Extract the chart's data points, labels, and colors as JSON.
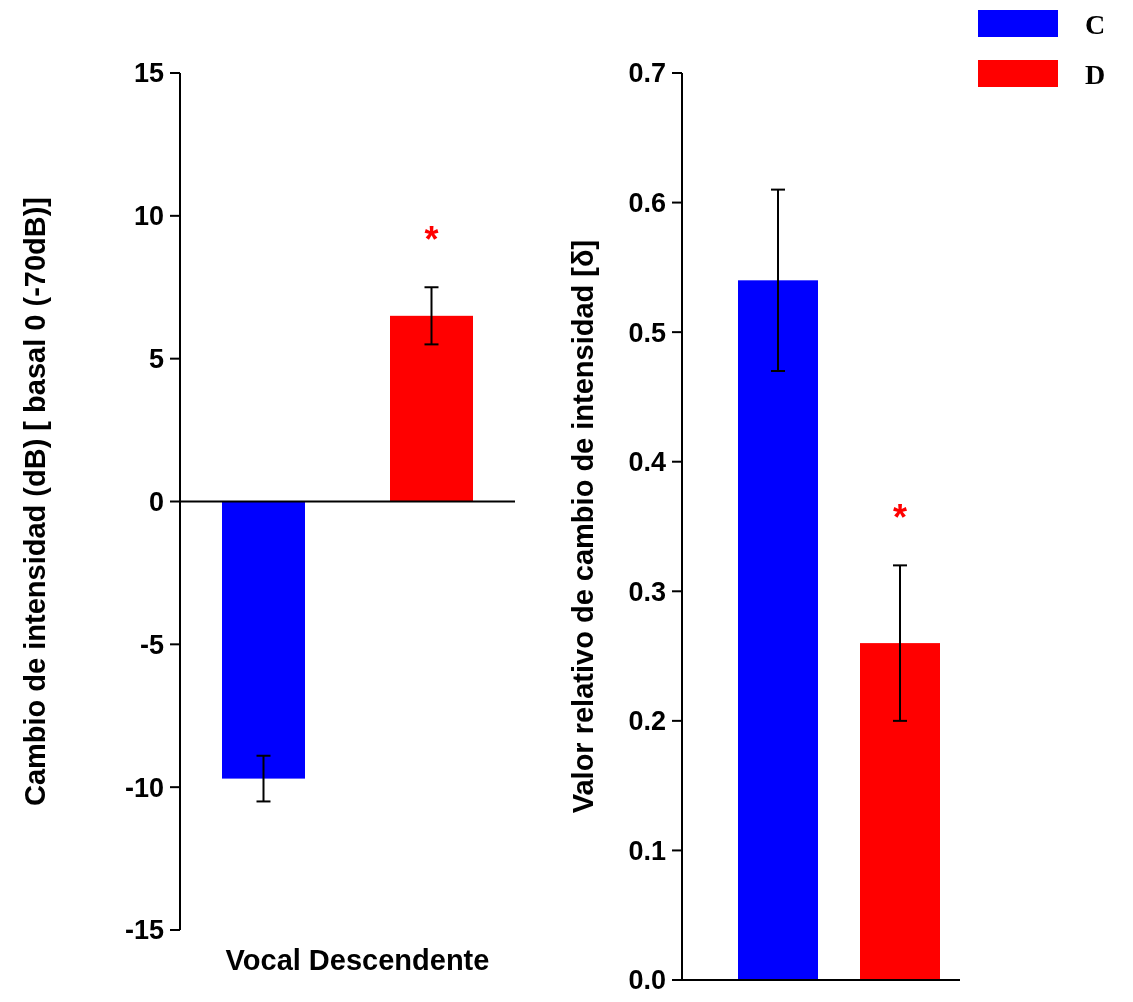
{
  "chart_data": [
    {
      "type": "bar",
      "categories": [
        null
      ],
      "series": [
        {
          "color": "#0000ff",
          "values": [
            -9.7
          ],
          "errors": [
            0.8
          ]
        },
        {
          "color": "#ff0000",
          "values": [
            6.5
          ],
          "errors": [
            1.0
          ]
        }
      ],
      "xlabel": "Vocal Descendente",
      "ylabel": "Cambio de intensidad (dB) [ basal 0 (-70dB)]",
      "ylim": [
        -15,
        15
      ],
      "yticks": [
        -15,
        -10,
        -5,
        0,
        5,
        10,
        15
      ],
      "annotations": [
        "*"
      ]
    },
    {
      "type": "bar",
      "categories": [
        null
      ],
      "series": [
        {
          "name": "C",
          "color": "#0000ff",
          "values": [
            0.54
          ],
          "errors": [
            0.07
          ]
        },
        {
          "name": "D",
          "color": "#ff0000",
          "values": [
            0.26
          ],
          "errors": [
            0.06
          ]
        }
      ],
      "ylabel": "Valor relativo de cambio de intensidad [δ]",
      "ylim": [
        0,
        0.7
      ],
      "yticks": [
        {
          "value": 0,
          "label": "0.0"
        },
        {
          "value": 0.1,
          "label": "0.1"
        },
        {
          "value": 0.2,
          "label": "0.2"
        },
        {
          "value": 0.3,
          "label": "0.3"
        },
        {
          "value": 0.4,
          "label": "0.4"
        },
        {
          "value": 0.5,
          "label": "0.5"
        },
        {
          "value": 0.6,
          "label": "0.6"
        },
        {
          "value": 0.7,
          "label": "0.7"
        }
      ],
      "annotations": [
        "*"
      ],
      "legend": "top right"
    }
  ]
}
